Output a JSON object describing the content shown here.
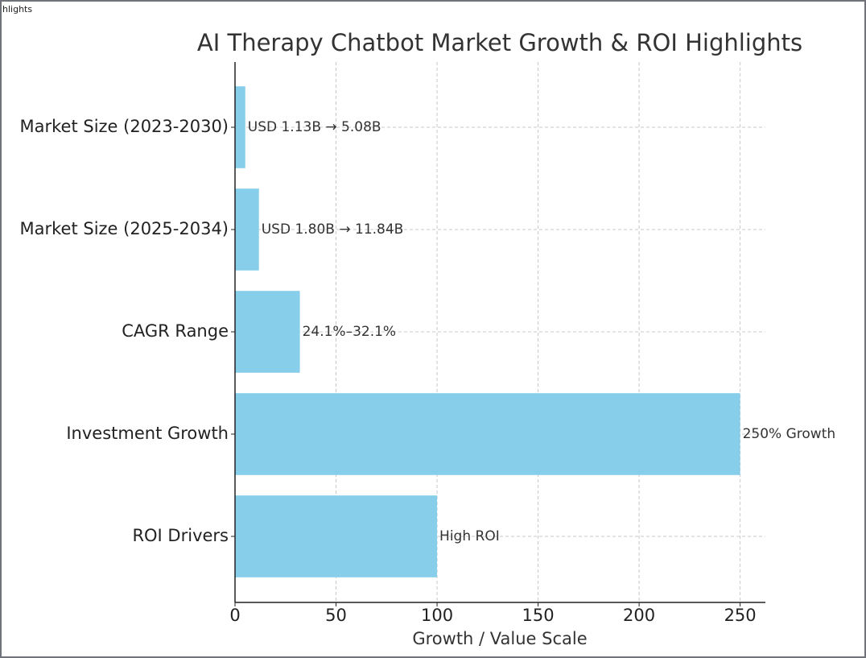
{
  "window": {
    "title": "hlights"
  },
  "chart_data": {
    "type": "barh",
    "title": "AI Therapy Chatbot Market Growth & ROI Highlights",
    "categories": [
      "Market Size (2023-2030)",
      "Market Size (2025-2034)",
      "CAGR Range",
      "Investment Growth",
      "ROI Drivers"
    ],
    "values": [
      5.08,
      11.84,
      32.1,
      250,
      100
    ],
    "value_labels": [
      "USD 1.13B → 5.08B",
      "USD 1.80B → 11.84B",
      "24.1%–32.1%",
      "250% Growth",
      "High ROI"
    ],
    "color": "#87ceeb",
    "xlabel": "Growth / Value Scale",
    "xlim": [
      0,
      262.5
    ],
    "xticks": [
      0,
      50,
      100,
      150,
      200,
      250
    ],
    "grid": true
  }
}
